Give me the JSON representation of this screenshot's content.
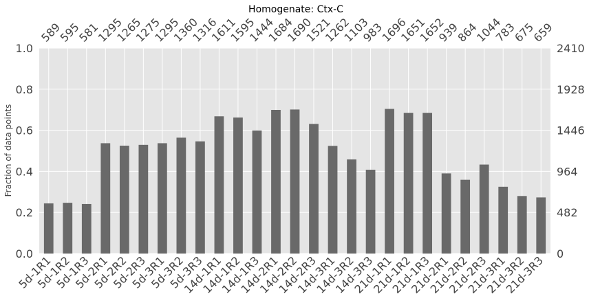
{
  "chart_data": {
    "type": "bar",
    "title": "Homogenate: Ctx-C",
    "ylabel": "Fraction of data points",
    "xlabel": "",
    "ylim": [
      0,
      1.0
    ],
    "yticks": [
      "0.0",
      "0.2",
      "0.4",
      "0.6",
      "0.8",
      "1.0"
    ],
    "right_axis": {
      "max": 2410,
      "ticks": [
        "0",
        "482",
        "964",
        "1446",
        "1928",
        "2410"
      ]
    },
    "grid": true,
    "bar_color": "#696969",
    "background_color": "#e5e5e5",
    "categories": [
      "5d-1R1",
      "5d-1R2",
      "5d-1R3",
      "5d-2R1",
      "5d-2R2",
      "5d-2R3",
      "5d-3R1",
      "5d-3R2",
      "5d-3R3",
      "14d-1R1",
      "14d-1R2",
      "14d-1R3",
      "14d-2R1",
      "14d-2R2",
      "14d-2R3",
      "14d-3R1",
      "14d-3R2",
      "14d-3R3",
      "21d-1R1",
      "21d-1R2",
      "21d-1R3",
      "21d-2R1",
      "21d-2R2",
      "21d-2R3",
      "21d-3R1",
      "21d-3R2",
      "21d-3R3"
    ],
    "counts": [
      589,
      595,
      581,
      1295,
      1265,
      1275,
      1295,
      1360,
      1316,
      1611,
      1595,
      1444,
      1684,
      1690,
      1521,
      1262,
      1103,
      983,
      1696,
      1651,
      1652,
      939,
      864,
      1044,
      783,
      675,
      659
    ],
    "values": [
      0.244,
      0.247,
      0.241,
      0.537,
      0.525,
      0.529,
      0.537,
      0.564,
      0.546,
      0.668,
      0.662,
      0.599,
      0.699,
      0.701,
      0.631,
      0.524,
      0.458,
      0.408,
      0.704,
      0.685,
      0.685,
      0.39,
      0.359,
      0.433,
      0.325,
      0.28,
      0.273
    ]
  }
}
